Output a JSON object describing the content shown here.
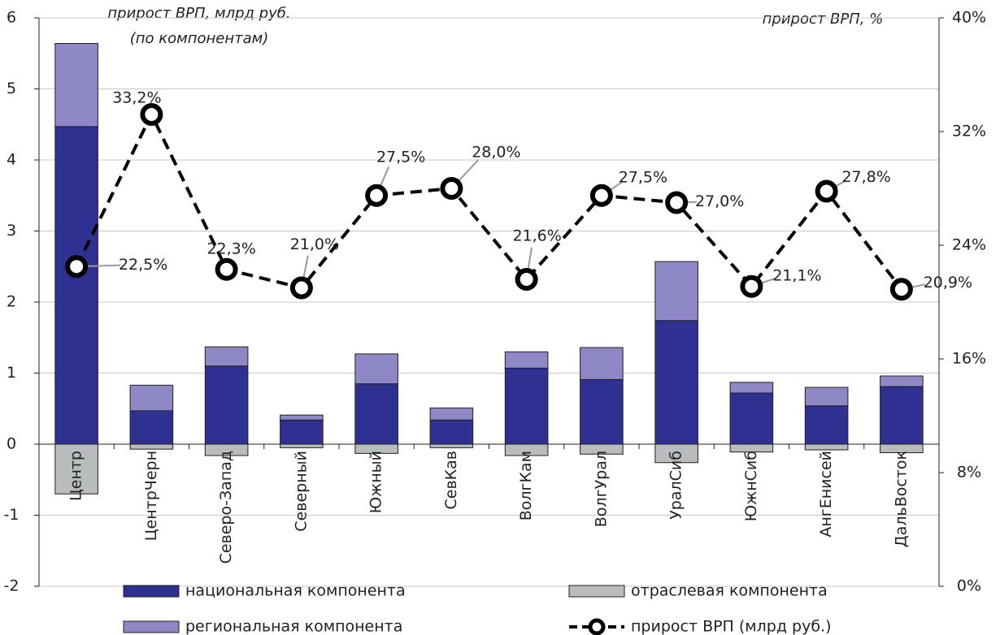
{
  "chart_data": {
    "type": "bar",
    "annotations": [
      "прирост ВРП, млрд руб.",
      "(по компонентам)",
      "прирост ВРП, %"
    ],
    "categories": [
      "Центр",
      "ЦентрЧерн",
      "Северо-Запад",
      "Северный",
      "Южный",
      "СевКав",
      "ВолгКам",
      "ВолгУрал",
      "УралСиб",
      "ЮжнСиб",
      "АнгЕнисей",
      "ДальВосток"
    ],
    "series": [
      {
        "name": "национальная компонента",
        "color": "#2e3192",
        "values": [
          4.47,
          0.47,
          1.1,
          0.34,
          0.85,
          0.34,
          1.07,
          0.91,
          1.74,
          0.72,
          0.54,
          0.81
        ]
      },
      {
        "name": "отраслевая компонента",
        "color": "#b8bcbc",
        "values": [
          -0.7,
          -0.07,
          -0.16,
          -0.05,
          -0.13,
          -0.05,
          -0.16,
          -0.14,
          -0.26,
          -0.11,
          -0.08,
          -0.12
        ]
      },
      {
        "name": "региональная компонента",
        "color": "#8e88c6",
        "values": [
          1.17,
          0.36,
          0.27,
          0.07,
          0.42,
          0.17,
          0.23,
          0.45,
          0.83,
          0.15,
          0.26,
          0.15
        ]
      },
      {
        "name": "прирост ВРП (млрд руб.)",
        "type": "line",
        "axis": "y2",
        "color": "#000000",
        "values": [
          22.5,
          33.2,
          22.3,
          21.0,
          27.5,
          28.0,
          21.6,
          27.5,
          27.0,
          21.1,
          27.8,
          20.9
        ],
        "value_labels": [
          "22,5%",
          "33,2%",
          "22,3%",
          "21,0%",
          "27,5%",
          "28,0%",
          "21,6%",
          "27,5%",
          "27,0%",
          "21,1%",
          "27,8%",
          "20,9%"
        ]
      }
    ],
    "ylim": [
      -2,
      6
    ],
    "yticks": [
      -2,
      -1,
      0,
      1,
      2,
      3,
      4,
      5,
      6
    ],
    "y2lim": [
      0,
      40
    ],
    "y2ticks": [
      {
        "value": 0,
        "label": "0%"
      },
      {
        "value": 8,
        "label": "8%"
      },
      {
        "value": 16,
        "label": "16%"
      },
      {
        "value": 24,
        "label": "24%"
      },
      {
        "value": 32,
        "label": "32%"
      },
      {
        "value": 40,
        "label": "40%"
      }
    ],
    "grid": true
  }
}
